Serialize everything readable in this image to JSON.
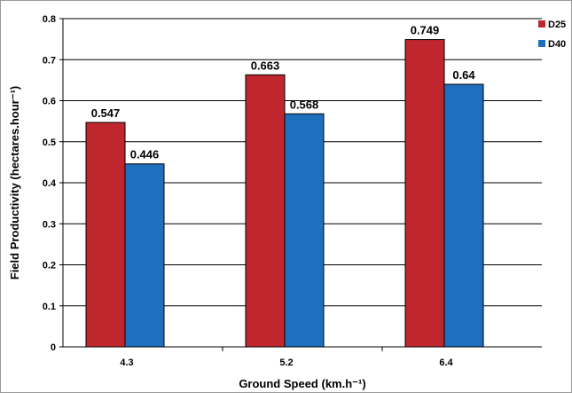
{
  "chart_data": {
    "type": "bar",
    "categories": [
      "4.3",
      "5.2",
      "6.4"
    ],
    "series": [
      {
        "name": "D25",
        "values": [
          0.547,
          0.663,
          0.749
        ],
        "labels": [
          "0.547",
          "0.663",
          "0.749"
        ],
        "color": "#c0262d"
      },
      {
        "name": "D40",
        "values": [
          0.446,
          0.568,
          0.64
        ],
        "labels": [
          "0.446",
          "0.568",
          "0.64"
        ],
        "color": "#1f6fbf"
      }
    ],
    "xlabel": "Ground Speed (km.h⁻¹)",
    "ylabel": "Field Productivity (hectares.hour⁻¹)",
    "ylim": [
      0,
      0.8
    ],
    "yticks": [
      "0",
      "0.1",
      "0.2",
      "0.3",
      "0.4",
      "0.5",
      "0.6",
      "0.7",
      "0.8"
    ],
    "grid": true,
    "legend": "top-right"
  }
}
